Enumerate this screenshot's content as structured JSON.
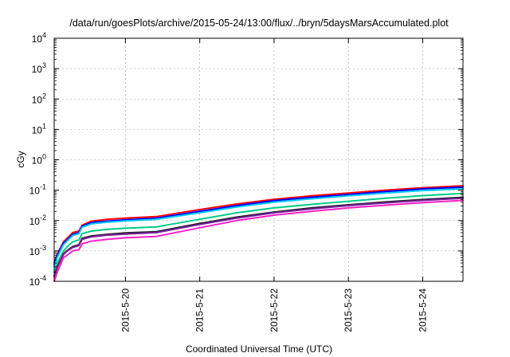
{
  "chart_data": {
    "type": "line",
    "title": "/data/run/goesPlots/archive/2015-05-24/13:00/flux/../bryn/5daysMarsAccumulated.plot",
    "xlabel": "Coordinated Universal Time (UTC)",
    "ylabel": "cGy",
    "y_scale": "log",
    "ylim": [
      0.0001,
      10000
    ],
    "y_ticks": [
      {
        "base": "10",
        "exp": "-4",
        "value": 0.0001
      },
      {
        "base": "10",
        "exp": "-3",
        "value": 0.001
      },
      {
        "base": "10",
        "exp": "-2",
        "value": 0.01
      },
      {
        "base": "10",
        "exp": "-1",
        "value": 0.1
      },
      {
        "base": "10",
        "exp": "0",
        "value": 1
      },
      {
        "base": "10",
        "exp": "1",
        "value": 10
      },
      {
        "base": "10",
        "exp": "2",
        "value": 100
      },
      {
        "base": "10",
        "exp": "3",
        "value": 1000
      },
      {
        "base": "10",
        "exp": "4",
        "value": 10000
      }
    ],
    "xlim": [
      "2015-05-19 01:00",
      "2015-05-24 13:00"
    ],
    "x_ticks": [
      {
        "label": "2015-5-20",
        "value": "2015-05-20 00:00"
      },
      {
        "label": "2015-5-21",
        "value": "2015-05-21 00:00"
      },
      {
        "label": "2015-5-22",
        "value": "2015-05-22 00:00"
      },
      {
        "label": "2015-5-23",
        "value": "2015-05-23 00:00"
      },
      {
        "label": "2015-5-24",
        "value": "2015-05-24 00:00"
      }
    ],
    "grid": true,
    "x": [
      "2015-05-19 01:00",
      "2015-05-19 02:00",
      "2015-05-19 04:00",
      "2015-05-19 05:00",
      "2015-05-19 07:00",
      "2015-05-19 09:00",
      "2015-05-19 10:00",
      "2015-05-19 13:00",
      "2015-05-19 18:00",
      "2015-05-20 00:00",
      "2015-05-20 10:00",
      "2015-05-21 00:00",
      "2015-05-21 12:00",
      "2015-05-22 00:00",
      "2015-05-22 12:00",
      "2015-05-23 00:00",
      "2015-05-23 12:00",
      "2015-05-24 00:00",
      "2015-05-24 13:00"
    ],
    "series": [
      {
        "color": "#ff0000",
        "values": [
          0.0004,
          0.0008,
          0.002,
          0.0025,
          0.004,
          0.0045,
          0.007,
          0.0095,
          0.011,
          0.012,
          0.0135,
          0.023,
          0.035,
          0.05,
          0.065,
          0.08,
          0.1,
          0.12,
          0.14
        ]
      },
      {
        "color": "#0000ff",
        "values": [
          0.00035,
          0.0007,
          0.0018,
          0.0022,
          0.0035,
          0.004,
          0.0065,
          0.0085,
          0.0095,
          0.0105,
          0.012,
          0.02,
          0.031,
          0.045,
          0.058,
          0.072,
          0.09,
          0.11,
          0.125
        ]
      },
      {
        "color": "#00ccff",
        "values": [
          0.0003,
          0.0006,
          0.0016,
          0.002,
          0.0032,
          0.0037,
          0.006,
          0.0078,
          0.0088,
          0.0097,
          0.011,
          0.018,
          0.028,
          0.04,
          0.052,
          0.065,
          0.08,
          0.097,
          0.11
        ]
      },
      {
        "color": "#00cc88",
        "values": [
          0.0002,
          0.0004,
          0.001,
          0.0013,
          0.002,
          0.0023,
          0.0037,
          0.0045,
          0.0051,
          0.0056,
          0.0062,
          0.011,
          0.018,
          0.026,
          0.034,
          0.043,
          0.054,
          0.066,
          0.078
        ]
      },
      {
        "color": "#202020",
        "values": [
          0.00015,
          0.0003,
          0.0008,
          0.001,
          0.0014,
          0.0016,
          0.0026,
          0.0031,
          0.0035,
          0.0039,
          0.0043,
          0.008,
          0.013,
          0.019,
          0.026,
          0.033,
          0.041,
          0.049,
          0.058
        ]
      },
      {
        "color": "#7a1fa0",
        "values": [
          0.00014,
          0.00028,
          0.00075,
          0.00095,
          0.0013,
          0.0015,
          0.0024,
          0.0029,
          0.0033,
          0.0036,
          0.004,
          0.0074,
          0.012,
          0.018,
          0.024,
          0.031,
          0.038,
          0.046,
          0.054
        ]
      },
      {
        "color": "#ff1fc8",
        "values": [
          0.0001,
          0.0002,
          0.0006,
          0.0007,
          0.001,
          0.0011,
          0.0017,
          0.0021,
          0.0024,
          0.0027,
          0.003,
          0.0058,
          0.01,
          0.015,
          0.02,
          0.026,
          0.032,
          0.039,
          0.046
        ]
      }
    ]
  }
}
